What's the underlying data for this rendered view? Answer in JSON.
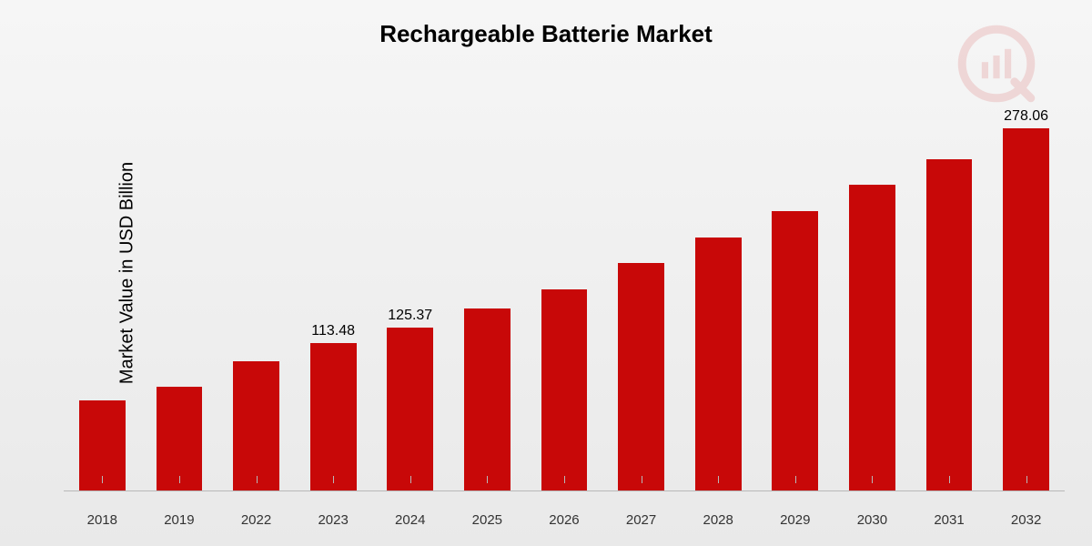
{
  "chart": {
    "type": "bar",
    "title": "Rechargeable Batterie Market",
    "title_fontsize": 26,
    "ylabel": "Market Value in USD Billion",
    "ylabel_fontsize": 20,
    "categories": [
      "2018",
      "2019",
      "2022",
      "2023",
      "2024",
      "2025",
      "2026",
      "2027",
      "2028",
      "2029",
      "2030",
      "2031",
      "2032"
    ],
    "values": [
      70,
      80,
      100,
      113.48,
      125.37,
      140,
      155,
      175,
      195,
      215,
      235,
      255,
      278.06
    ],
    "value_labels": [
      "",
      "",
      "",
      "113.48",
      "125.37",
      "",
      "",
      "",
      "",
      "",
      "",
      "",
      "278.06"
    ],
    "bar_color": "#c80808",
    "ylim": [
      0,
      300
    ],
    "background_gradient": [
      "#f6f6f6",
      "#e9e9e9"
    ],
    "axis_line_color": "#b8b8b8",
    "tick_fontsize": 15,
    "datalabel_fontsize": 16,
    "bar_width_ratio": 0.6,
    "watermark_color": "#c80808"
  }
}
